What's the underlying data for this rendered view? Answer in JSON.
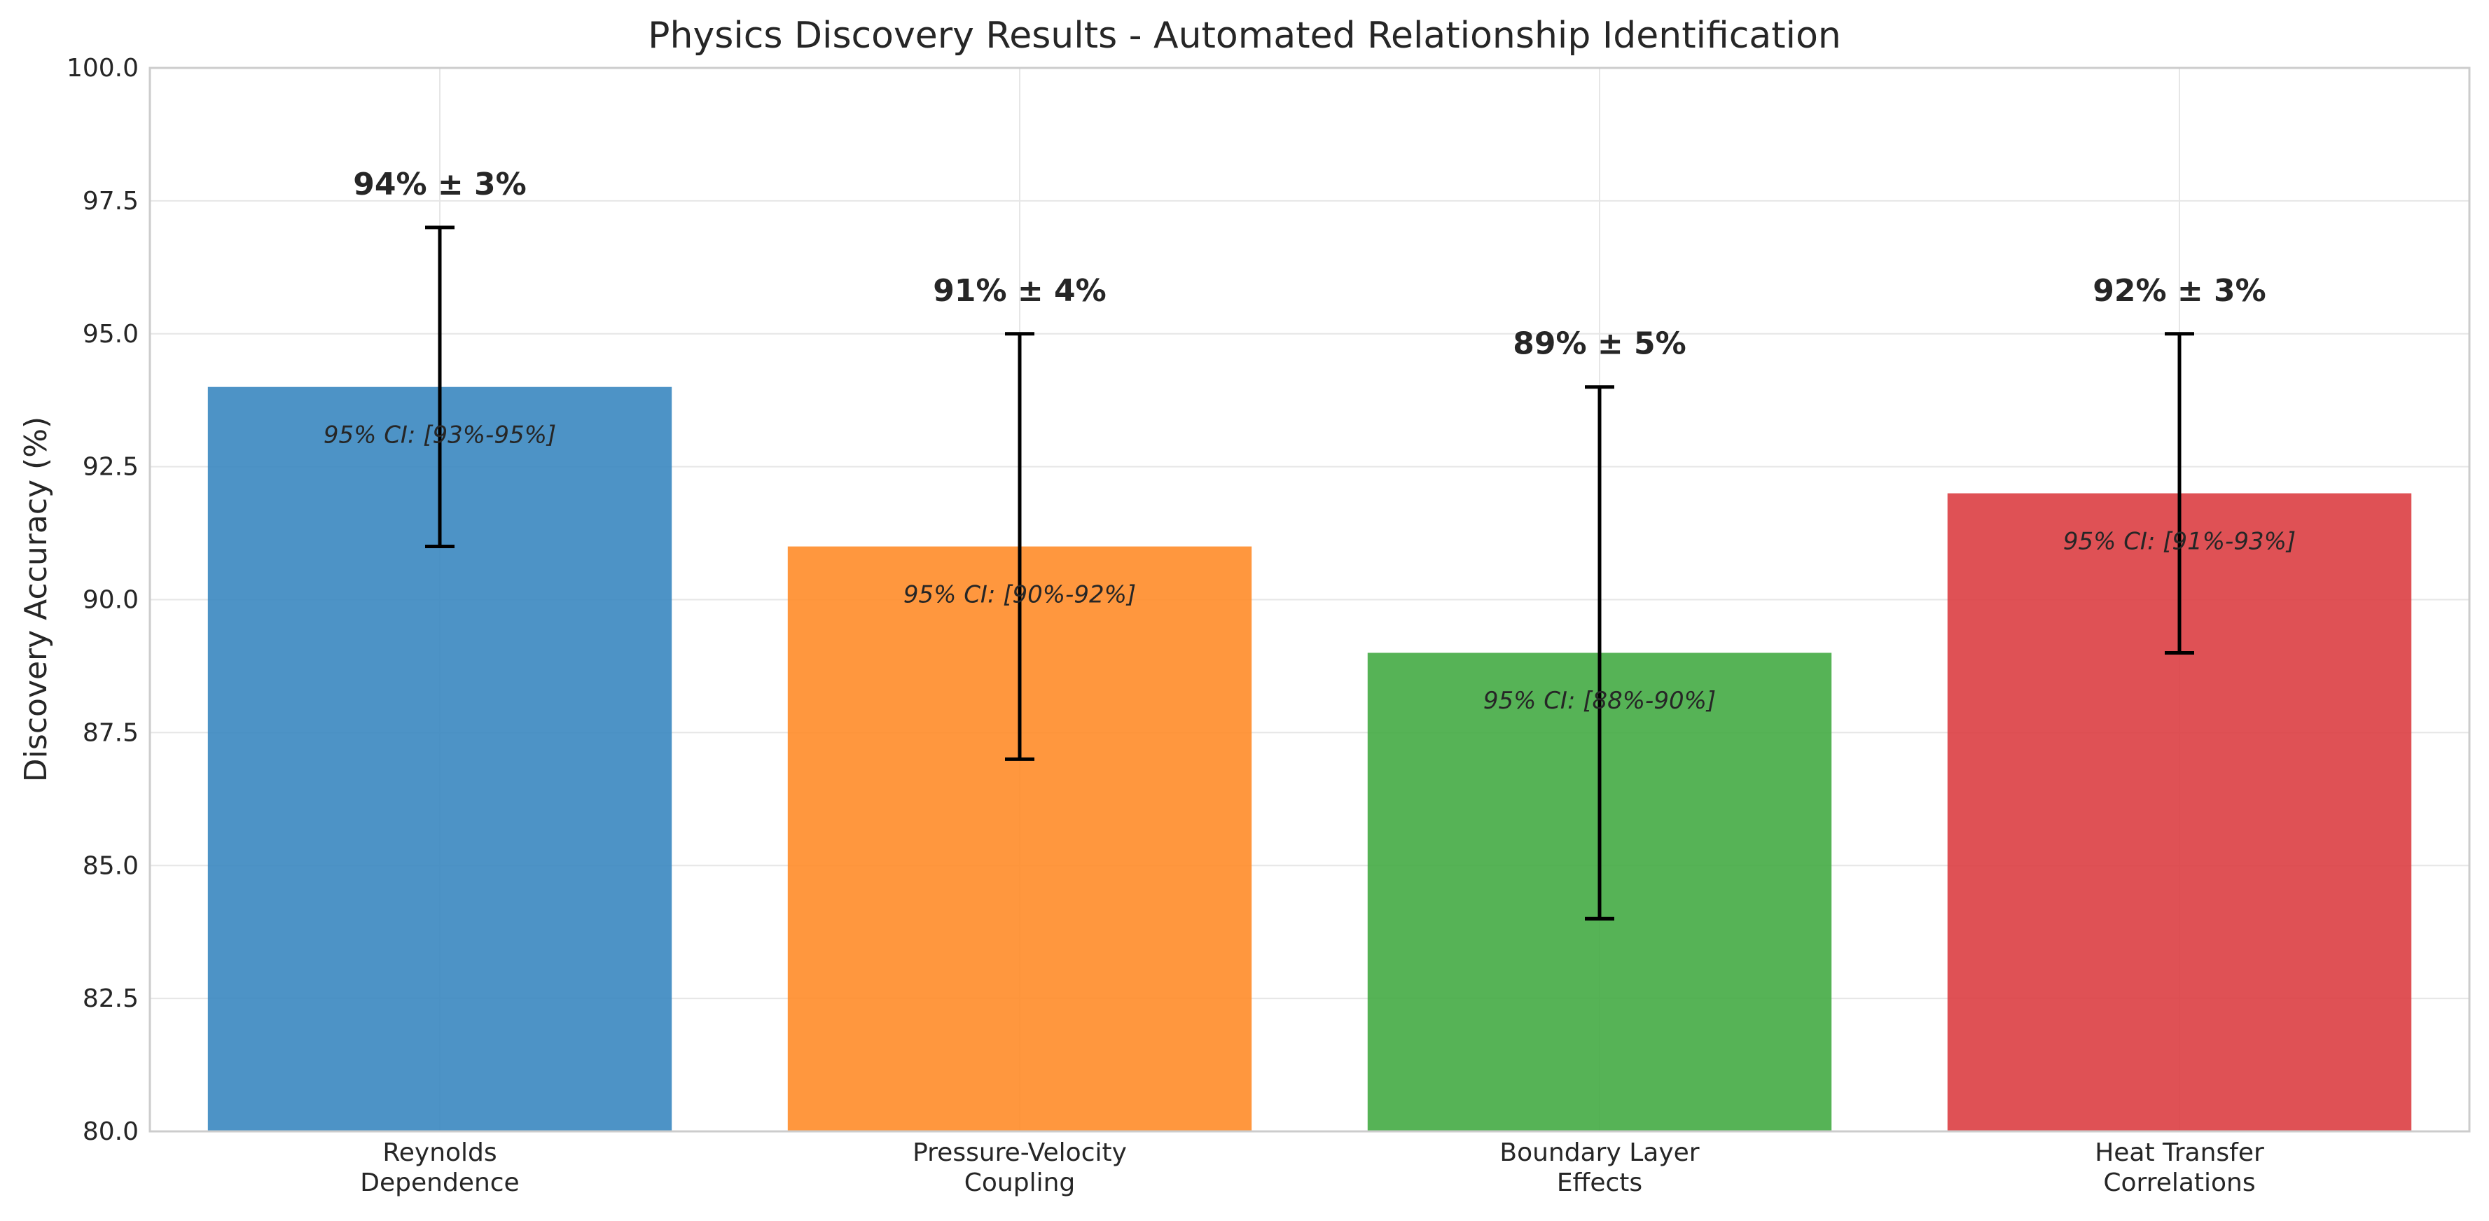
{
  "chart_data": {
    "type": "bar",
    "title": "Physics Discovery Results - Automated Relationship Identification",
    "xlabel": "",
    "ylabel": "Discovery Accuracy (%)",
    "ylim": [
      80,
      100
    ],
    "yticks": [
      "80.0",
      "82.5",
      "85.0",
      "87.5",
      "90.0",
      "92.5",
      "95.0",
      "97.5",
      "100.0"
    ],
    "grid": true,
    "categories": [
      [
        "Reynolds",
        "Dependence"
      ],
      [
        "Pressure-Velocity",
        "Coupling"
      ],
      [
        "Boundary Layer",
        "Effects"
      ],
      [
        "Heat Transfer",
        "Correlations"
      ]
    ],
    "values": [
      94,
      91,
      89,
      92
    ],
    "errors": [
      3,
      4,
      5,
      3
    ],
    "value_labels": [
      "94% ± 3%",
      "91% ± 4%",
      "89% ± 5%",
      "92% ± 3%"
    ],
    "ci_labels": [
      "95% CI: [93%-95%]",
      "95% CI: [90%-92%]",
      "95% CI: [88%-90%]",
      "95% CI: [91%-93%]"
    ],
    "colors": [
      "#3a87c0",
      "#ff8c29",
      "#44ab44",
      "#dc3e42"
    ]
  }
}
